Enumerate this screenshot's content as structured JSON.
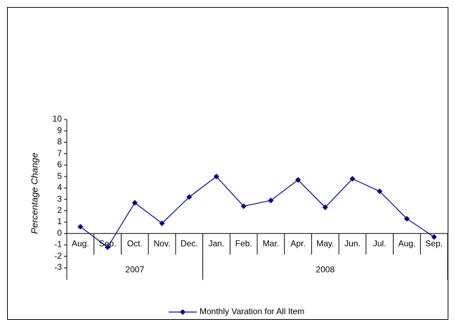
{
  "chart_data": {
    "type": "line",
    "y_label": "Percentage Change",
    "categories": [
      "Aug.",
      "Sep.",
      "Oct.",
      "Nov.",
      "Dec.",
      "Jan.",
      "Feb.",
      "Mar.",
      "Apr.",
      "May.",
      "Jun.",
      "Jul.",
      "Aug.",
      "Sep."
    ],
    "groups": [
      {
        "label": "2007",
        "size": 5
      },
      {
        "label": "2008",
        "size": 9
      }
    ],
    "series": [
      {
        "name": "Monthly Varation for All Item",
        "color": "#000080",
        "values": [
          0.6,
          -1.2,
          2.7,
          0.9,
          3.2,
          5.0,
          2.4,
          2.9,
          4.7,
          2.3,
          4.8,
          3.7,
          1.3,
          -0.3
        ]
      }
    ],
    "ylim": [
      -3,
      10
    ],
    "yticks": [
      -3,
      -2,
      -1,
      0,
      1,
      2,
      3,
      4,
      5,
      6,
      7,
      8,
      9,
      10
    ],
    "grid": false,
    "legend": "bottom"
  }
}
